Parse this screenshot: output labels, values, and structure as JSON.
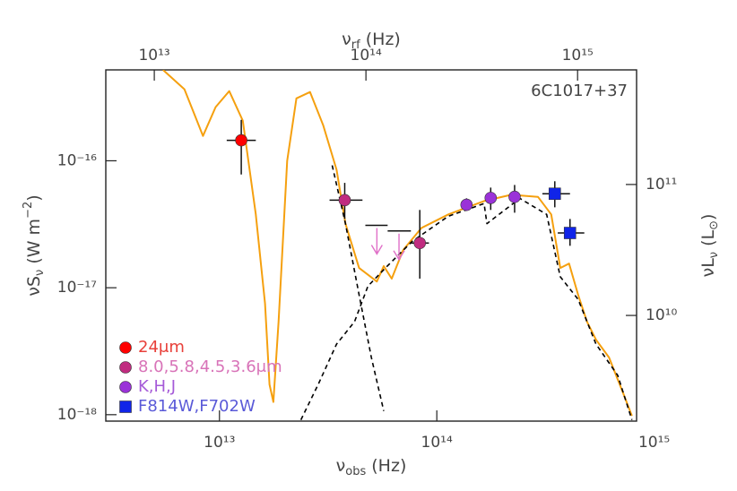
{
  "chart_data": {
    "type": "line",
    "annotation": "6C1017+37",
    "xlabel": [
      {
        "text": "ν"
      },
      {
        "text": "obs",
        "shift": "sub"
      },
      {
        "text": " (Hz)"
      }
    ],
    "x2label": [
      {
        "text": "ν"
      },
      {
        "text": "rf",
        "shift": "sub"
      },
      {
        "text": " (Hz)"
      }
    ],
    "ylabel": [
      {
        "text": "νS"
      },
      {
        "text": "ν",
        "shift": "sub"
      },
      {
        "text": " (W m"
      },
      {
        "text": "−2",
        "shift": "sup"
      },
      {
        "text": ")"
      }
    ],
    "y2label": [
      {
        "text": "νL"
      },
      {
        "text": "ν",
        "shift": "sub"
      },
      {
        "text": " (L"
      },
      {
        "text": "⊙",
        "shift": "sub"
      },
      {
        "text": ")"
      }
    ],
    "xlog": true,
    "ylog": true,
    "xlim": [
      3000000000000.0,
      830000000000000.0
    ],
    "xticks": [
      {
        "value": 10000000000000.0,
        "label": "10¹³"
      },
      {
        "value": 100000000000000.0,
        "label": "10¹⁴"
      },
      {
        "value": 1000000000000000.0,
        "label": "10¹⁵"
      }
    ],
    "x2lim": [
      5900000000000.0,
      1900000000000000.0
    ],
    "x2ticks": [
      {
        "value": 10000000000000.0,
        "label": "10¹³"
      },
      {
        "value": 100000000000000.0,
        "label": "10¹⁴"
      },
      {
        "value": 1000000000000000.0,
        "label": "10¹⁵"
      }
    ],
    "ylim": [
      8.9e-19,
      5.2e-16
    ],
    "yticks": [
      {
        "value": 1e-18,
        "label": "10⁻¹⁸"
      },
      {
        "value": 1e-17,
        "label": "10⁻¹⁷"
      },
      {
        "value": 1e-16,
        "label": "10⁻¹⁶"
      }
    ],
    "y2lim": [
      1560000000.0,
      750000000000.0
    ],
    "y2ticks": [
      {
        "value": 10000000000.0,
        "label": "10¹⁰"
      },
      {
        "value": 100000000000.0,
        "label": "10¹¹"
      }
    ],
    "legend": "lower left",
    "series": [
      {
        "type": "line",
        "color": "#f5a00f",
        "dashed": false,
        "x": [
          5500000000000.0,
          6900000000000.0,
          8400000000000.0,
          9600000000000.0,
          11100000000000.0,
          12800000000000.0,
          14700000000000.0,
          16200000000000.0,
          17000000000000.0,
          17700000000000.0,
          18700000000000.0,
          20500000000000.0,
          22600000000000.0,
          26100000000000.0,
          30000000000000.0,
          34600000000000.0,
          38000000000000.0,
          43900000000000.0,
          53000000000000.0,
          57000000000000.0,
          62000000000000.0,
          70000000000000.0,
          85000000000000.0,
          113000000000000.0,
          165000000000000.0,
          220000000000000.0,
          292000000000000.0,
          336000000000000.0,
          370000000000000.0,
          406000000000000.0,
          447000000000000.0,
          491000000000000.0,
          540000000000000.0,
          620000000000000.0,
          720000000000000.0,
          790000000000000.0
        ],
        "y": [
          5.2e-16,
          3.66e-16,
          1.57e-16,
          2.65e-16,
          3.54e-16,
          2.07e-16,
          3.78e-17,
          7.5e-18,
          1.73e-18,
          1.26e-18,
          5.4e-18,
          1e-16,
          3.1e-16,
          3.48e-16,
          1.91e-16,
          8.5e-17,
          3.2e-17,
          1.43e-17,
          1.12e-17,
          1.48e-17,
          1.18e-17,
          1.98e-17,
          2.96e-17,
          3.78e-17,
          4.82e-17,
          5.4e-17,
          5.2e-17,
          3.78e-17,
          1.43e-17,
          1.55e-17,
          8.8e-18,
          5.4e-18,
          3.9e-18,
          2.82e-18,
          1.48e-18,
          9.8e-19
        ]
      },
      {
        "type": "line",
        "color": "#000000",
        "dashed": true,
        "x": [
          33000000000000.0,
          38000000000000.0,
          43900000000000.0,
          50000000000000.0,
          57000000000000.0
        ],
        "y": [
          9.2e-17,
          3.2e-17,
          8.8e-18,
          2.82e-18,
          1.07e-18
        ]
      },
      {
        "type": "line",
        "color": "#000000",
        "dashed": true,
        "x": [
          23700000000000.0,
          28600000000000.0,
          34600000000000.0,
          41800000000000.0,
          48200000000000.0,
          58000000000000.0,
          77000000000000.0,
          113000000000000.0,
          165000000000000.0,
          170000000000000.0,
          241000000000000.0,
          320000000000000.0,
          370000000000000.0,
          447000000000000.0,
          540000000000000.0,
          680000000000000.0,
          790000000000000.0
        ],
        "y": [
          9.1e-19,
          1.76e-18,
          3.6e-18,
          5.4e-18,
          1.03e-17,
          1.43e-17,
          2.32e-17,
          3.66e-17,
          4.6e-17,
          3.2e-17,
          5.06e-17,
          3.78e-17,
          1.22e-17,
          8.1e-18,
          3.6e-18,
          2.04e-18,
          9.1e-19
        ]
      },
      {
        "type": "scatter",
        "name": "24μm",
        "color": "#ff0000",
        "label_color": "#e8403a",
        "marker": "circle",
        "x": [
          12600000000000.0
        ],
        "y": [
          1.45e-16
        ],
        "x_err": [
          [
            10800000000000.0,
            14700000000000.0
          ]
        ],
        "y_err": [
          [
            7.8e-17,
            2.1e-16
          ]
        ]
      },
      {
        "type": "scatter",
        "name": "8.0,5.8,4.5,3.6μm",
        "color": "#c02c80",
        "label_color": "#d873b8",
        "marker": "circle",
        "x": [
          37700000000000.0,
          83500000000000.0
        ],
        "y": [
          4.9e-17,
          2.25e-17
        ],
        "x_err": [
          [
            32100000000000.0,
            45500000000000.0
          ],
          [
            76000000000000.0,
            92000000000000.0
          ]
        ],
        "y_err": [
          [
            3.48e-17,
            6.7e-17
          ],
          [
            1.18e-17,
            4.1e-17
          ]
        ]
      },
      {
        "type": "upper_limit",
        "color": "#e070c8",
        "x": [
          53000000000000.0,
          67000000000000.0
        ],
        "y": [
          3.1e-17,
          2.8e-17
        ],
        "x_err": [
          [
            46900000000000.0,
            59400000000000.0
          ],
          [
            59400000000000.0,
            76000000000000.0
          ]
        ]
      },
      {
        "type": "scatter",
        "name": "K,H,J",
        "color": "#9a32d8",
        "label_color": "#a55ad8",
        "marker": "circle",
        "x": [
          137000000000000.0,
          177000000000000.0,
          228000000000000.0
        ],
        "y": [
          4.5e-17,
          5.1e-17,
          5.2e-17
        ],
        "y_err": [
          [
            4.03e-17,
            5.06e-17
          ],
          [
            4.1e-17,
            6.15e-17
          ],
          [
            3.9e-17,
            6.45e-17
          ]
        ]
      },
      {
        "type": "scatter",
        "name": "F814W,F702W",
        "color": "#1024e8",
        "label_color": "#5a5ad8",
        "marker": "square",
        "x": [
          349000000000000.0,
          410000000000000.0
        ],
        "y": [
          5.5e-17,
          2.7e-17
        ],
        "x_err": [
          [
            306000000000000.0,
            410000000000000.0
          ],
          [
            360000000000000.0,
            477000000000000.0
          ]
        ],
        "y_err": [
          [
            4.3e-17,
            6.9e-17
          ],
          [
            2.14e-17,
            3.48e-17
          ]
        ]
      }
    ]
  }
}
